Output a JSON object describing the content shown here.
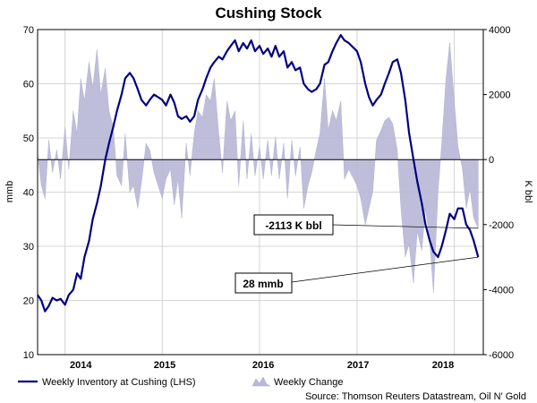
{
  "chart_data": {
    "type": "line",
    "title": "Cushing Stock",
    "ylabel_left": "mmb",
    "ylabel_right": "K bbl",
    "ylim_left": [
      10,
      70
    ],
    "yticks_left": [
      "10",
      "20",
      "30",
      "40",
      "50",
      "60",
      "70"
    ],
    "ylim_right": [
      -6000,
      4000
    ],
    "yticks_right": [
      "-6000",
      "-4000",
      "-2000",
      "0",
      "2000",
      "4000"
    ],
    "xlim": [
      "2013-09-20",
      "2018-04-20"
    ],
    "x_tick_labels": [
      "2014",
      "2015",
      "2016",
      "2017",
      "2018"
    ],
    "x_tick_positions": [
      "2014-03-01",
      "2015-01-10",
      "2016-01-15",
      "2017-01-05",
      "2017-11-20"
    ],
    "grid": true,
    "legend_position": "bottom-left",
    "series": [
      {
        "name": "Weekly Inventory at Cushing (LHS)",
        "axis": "left",
        "color": "#000080",
        "points": [
          [
            "2013-09-20",
            21.0
          ],
          [
            "2013-10-04",
            20.0
          ],
          [
            "2013-10-18",
            18.0
          ],
          [
            "2013-11-01",
            19.0
          ],
          [
            "2013-11-15",
            20.5
          ],
          [
            "2013-12-01",
            20.0
          ],
          [
            "2013-12-15",
            20.3
          ],
          [
            "2014-01-01",
            19.2
          ],
          [
            "2014-01-15",
            21.0
          ],
          [
            "2014-02-01",
            22.0
          ],
          [
            "2014-02-15",
            25.0
          ],
          [
            "2014-03-01",
            24.0
          ],
          [
            "2014-03-15",
            28.0
          ],
          [
            "2014-04-01",
            31.0
          ],
          [
            "2014-04-15",
            35.0
          ],
          [
            "2014-05-01",
            38.0
          ],
          [
            "2014-05-15",
            41.0
          ],
          [
            "2014-06-01",
            46.0
          ],
          [
            "2014-06-15",
            49.0
          ],
          [
            "2014-07-01",
            52.0
          ],
          [
            "2014-07-15",
            55.0
          ],
          [
            "2014-08-01",
            58.0
          ],
          [
            "2014-08-15",
            61.0
          ],
          [
            "2014-09-01",
            62.0
          ],
          [
            "2014-09-15",
            61.0
          ],
          [
            "2014-10-01",
            59.0
          ],
          [
            "2014-10-15",
            57.0
          ],
          [
            "2014-11-01",
            56.0
          ],
          [
            "2014-11-15",
            57.0
          ],
          [
            "2014-12-01",
            58.0
          ],
          [
            "2015-01-01",
            57.0
          ],
          [
            "2015-01-15",
            56.0
          ],
          [
            "2015-02-01",
            58.0
          ],
          [
            "2015-02-15",
            56.5
          ],
          [
            "2015-03-01",
            54.0
          ],
          [
            "2015-03-15",
            53.5
          ],
          [
            "2015-04-01",
            54.0
          ],
          [
            "2015-04-15",
            53.0
          ],
          [
            "2015-05-01",
            54.0
          ],
          [
            "2015-05-15",
            57.0
          ],
          [
            "2015-06-01",
            59.0
          ],
          [
            "2015-06-15",
            61.0
          ],
          [
            "2015-07-01",
            63.0
          ],
          [
            "2015-07-15",
            64.0
          ],
          [
            "2015-08-01",
            65.0
          ],
          [
            "2015-08-15",
            64.5
          ],
          [
            "2015-09-01",
            66.0
          ],
          [
            "2015-09-15",
            67.0
          ],
          [
            "2015-10-01",
            68.0
          ],
          [
            "2015-10-15",
            66.0
          ],
          [
            "2015-11-01",
            67.5
          ],
          [
            "2015-11-15",
            66.5
          ],
          [
            "2015-12-01",
            68.0
          ],
          [
            "2015-12-15",
            66.0
          ],
          [
            "2016-01-01",
            67.0
          ],
          [
            "2016-01-15",
            65.5
          ],
          [
            "2016-02-01",
            66.5
          ],
          [
            "2016-02-15",
            65.0
          ],
          [
            "2016-03-01",
            67.0
          ],
          [
            "2016-03-15",
            65.0
          ],
          [
            "2016-04-01",
            66.0
          ],
          [
            "2016-04-15",
            63.0
          ],
          [
            "2016-05-01",
            64.0
          ],
          [
            "2016-05-15",
            62.5
          ],
          [
            "2016-06-01",
            63.0
          ],
          [
            "2016-06-15",
            60.0
          ],
          [
            "2016-07-01",
            59.0
          ],
          [
            "2016-07-15",
            58.5
          ],
          [
            "2016-08-01",
            59.0
          ],
          [
            "2016-08-15",
            60.0
          ],
          [
            "2016-09-01",
            63.5
          ],
          [
            "2016-09-15",
            64.0
          ],
          [
            "2016-10-01",
            66.0
          ],
          [
            "2016-10-15",
            67.5
          ],
          [
            "2016-11-01",
            69.0
          ],
          [
            "2016-11-15",
            68.0
          ],
          [
            "2016-12-01",
            67.5
          ],
          [
            "2017-01-01",
            66.0
          ],
          [
            "2017-01-15",
            64.0
          ],
          [
            "2017-02-01",
            60.0
          ],
          [
            "2017-02-15",
            57.5
          ],
          [
            "2017-03-01",
            56.0
          ],
          [
            "2017-03-15",
            57.0
          ],
          [
            "2017-04-01",
            58.0
          ],
          [
            "2017-04-15",
            60.0
          ],
          [
            "2017-05-01",
            62.0
          ],
          [
            "2017-05-15",
            64.0
          ],
          [
            "2017-06-01",
            64.5
          ],
          [
            "2017-06-15",
            62.0
          ],
          [
            "2017-07-01",
            57.0
          ],
          [
            "2017-07-15",
            51.0
          ],
          [
            "2017-08-01",
            46.0
          ],
          [
            "2017-08-15",
            42.0
          ],
          [
            "2017-09-01",
            38.0
          ],
          [
            "2017-09-15",
            34.0
          ],
          [
            "2017-10-01",
            31.0
          ],
          [
            "2017-10-15",
            29.0
          ],
          [
            "2017-11-01",
            28.0
          ],
          [
            "2017-11-15",
            30.0
          ],
          [
            "2017-12-01",
            33.0
          ],
          [
            "2017-12-15",
            36.0
          ],
          [
            "2018-01-01",
            35.0
          ],
          [
            "2018-01-15",
            37.0
          ],
          [
            "2018-02-01",
            37.0
          ],
          [
            "2018-02-15",
            34.0
          ],
          [
            "2018-03-01",
            33.0
          ],
          [
            "2018-03-15",
            31.0
          ],
          [
            "2018-04-01",
            28.0
          ]
        ]
      },
      {
        "name": "Weekly Change",
        "axis": "right",
        "type": "area",
        "color": "#b8b8d8",
        "points": [
          [
            "2013-09-20",
            200
          ],
          [
            "2013-10-04",
            -800
          ],
          [
            "2013-10-18",
            -1200
          ],
          [
            "2013-11-01",
            600
          ],
          [
            "2013-11-15",
            -400
          ],
          [
            "2013-12-01",
            300
          ],
          [
            "2013-12-15",
            -600
          ],
          [
            "2014-01-01",
            1000
          ],
          [
            "2014-01-15",
            -300
          ],
          [
            "2014-02-01",
            1500
          ],
          [
            "2014-02-15",
            800
          ],
          [
            "2014-03-01",
            2500
          ],
          [
            "2014-03-15",
            1800
          ],
          [
            "2014-04-01",
            3000
          ],
          [
            "2014-04-15",
            2200
          ],
          [
            "2014-05-01",
            3400
          ],
          [
            "2014-05-15",
            2000
          ],
          [
            "2014-06-01",
            2800
          ],
          [
            "2014-06-15",
            1500
          ],
          [
            "2014-07-01",
            1000
          ],
          [
            "2014-07-15",
            -500
          ],
          [
            "2014-08-01",
            -800
          ],
          [
            "2014-08-15",
            800
          ],
          [
            "2014-09-01",
            -1000
          ],
          [
            "2014-09-15",
            -800
          ],
          [
            "2014-10-01",
            -1500
          ],
          [
            "2014-10-15",
            -700
          ],
          [
            "2014-11-01",
            500
          ],
          [
            "2014-11-15",
            300
          ],
          [
            "2014-12-01",
            -400
          ],
          [
            "2015-01-01",
            -1200
          ],
          [
            "2015-01-15",
            -600
          ],
          [
            "2015-02-01",
            -300
          ],
          [
            "2015-02-15",
            -1400
          ],
          [
            "2015-03-01",
            -600
          ],
          [
            "2015-03-15",
            -1800
          ],
          [
            "2015-04-01",
            500
          ],
          [
            "2015-04-15",
            -500
          ],
          [
            "2015-05-01",
            800
          ],
          [
            "2015-05-15",
            1500
          ],
          [
            "2015-06-01",
            1300
          ],
          [
            "2015-06-15",
            2000
          ],
          [
            "2015-07-01",
            1800
          ],
          [
            "2015-07-15",
            2500
          ],
          [
            "2015-08-01",
            800
          ],
          [
            "2015-08-15",
            -400
          ],
          [
            "2015-09-01",
            1800
          ],
          [
            "2015-09-15",
            1200
          ],
          [
            "2015-10-01",
            1500
          ],
          [
            "2015-10-15",
            -800
          ],
          [
            "2015-11-01",
            1200
          ],
          [
            "2015-11-15",
            -600
          ],
          [
            "2015-12-01",
            800
          ],
          [
            "2015-12-15",
            -500
          ],
          [
            "2016-01-01",
            400
          ],
          [
            "2016-01-15",
            -600
          ],
          [
            "2016-02-01",
            600
          ],
          [
            "2016-02-15",
            -500
          ],
          [
            "2016-03-01",
            700
          ],
          [
            "2016-03-15",
            -600
          ],
          [
            "2016-04-01",
            500
          ],
          [
            "2016-04-15",
            -1200
          ],
          [
            "2016-05-01",
            600
          ],
          [
            "2016-05-15",
            -500
          ],
          [
            "2016-06-01",
            400
          ],
          [
            "2016-06-15",
            -1500
          ],
          [
            "2016-07-01",
            -800
          ],
          [
            "2016-07-15",
            -400
          ],
          [
            "2016-08-01",
            300
          ],
          [
            "2016-08-15",
            800
          ],
          [
            "2016-09-01",
            2500
          ],
          [
            "2016-09-15",
            900
          ],
          [
            "2016-10-01",
            1500
          ],
          [
            "2016-10-15",
            1200
          ],
          [
            "2016-11-01",
            1800
          ],
          [
            "2016-11-15",
            -600
          ],
          [
            "2016-12-01",
            -300
          ],
          [
            "2017-01-01",
            -800
          ],
          [
            "2017-01-15",
            -1200
          ],
          [
            "2017-02-01",
            -2000
          ],
          [
            "2017-02-15",
            -1500
          ],
          [
            "2017-03-01",
            -1000
          ],
          [
            "2017-03-15",
            600
          ],
          [
            "2017-04-01",
            900
          ],
          [
            "2017-04-15",
            1200
          ],
          [
            "2017-05-01",
            1300
          ],
          [
            "2017-05-15",
            1100
          ],
          [
            "2017-06-01",
            300
          ],
          [
            "2017-06-15",
            -1500
          ],
          [
            "2017-07-01",
            -3000
          ],
          [
            "2017-07-15",
            -2600
          ],
          [
            "2017-08-01",
            -3800
          ],
          [
            "2017-08-15",
            -2200
          ],
          [
            "2017-09-01",
            -2800
          ],
          [
            "2017-09-15",
            -1500
          ],
          [
            "2017-10-01",
            -2500
          ],
          [
            "2017-10-15",
            -4100
          ],
          [
            "2017-11-01",
            -1000
          ],
          [
            "2017-11-15",
            500
          ],
          [
            "2017-12-01",
            2500
          ],
          [
            "2017-12-15",
            3600
          ],
          [
            "2018-01-01",
            1800
          ],
          [
            "2018-01-15",
            400
          ],
          [
            "2018-02-01",
            -300
          ],
          [
            "2018-02-15",
            -1500
          ],
          [
            "2018-03-01",
            -900
          ],
          [
            "2018-03-15",
            -1800
          ],
          [
            "2018-04-01",
            -2113
          ]
        ]
      }
    ],
    "annotations": [
      {
        "text": "-2113 K bbl",
        "target": [
          "2018-04-01",
          -2113
        ],
        "axis": "right"
      },
      {
        "text": "28 mmb",
        "target": [
          "2018-04-01",
          28
        ],
        "axis": "left"
      }
    ],
    "source": "Source: Thomson Reuters Datastream, Oil N' Gold"
  }
}
